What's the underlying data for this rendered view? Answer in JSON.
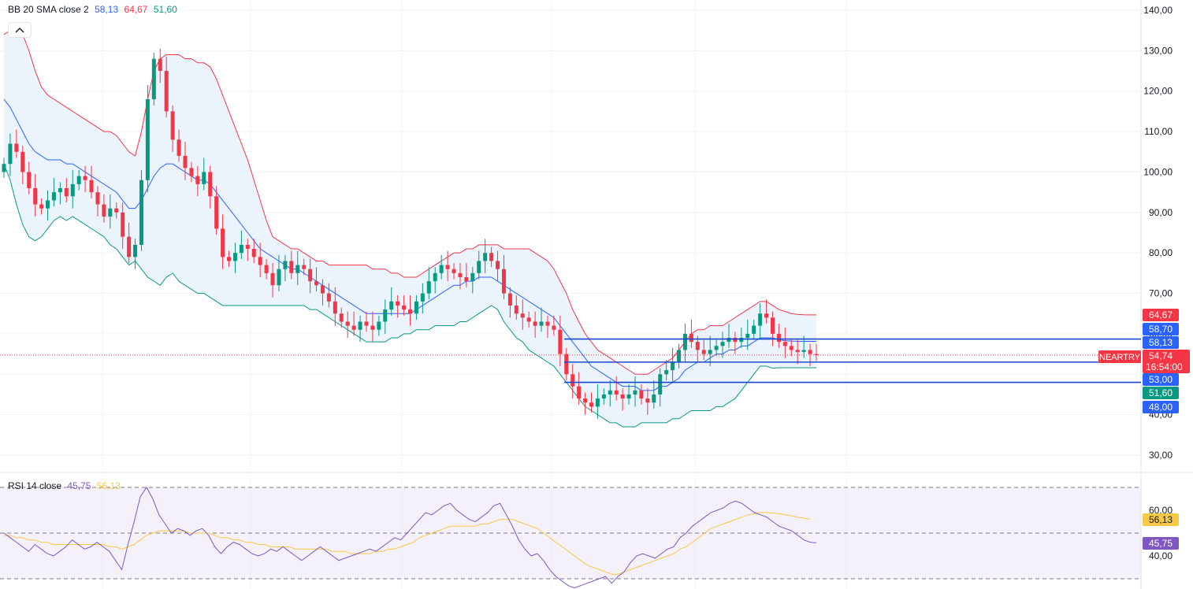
{
  "legend_bb": {
    "title": "BB 20 SMA close 2",
    "basis": "58,13",
    "upper": "64,67",
    "lower": "51,60"
  },
  "legend_rsi": {
    "title": "RSI 14 close",
    "rsi": "45,75",
    "ma": "56,13"
  },
  "colors": {
    "up": "#089981",
    "down": "#f23645",
    "basis": "#2962ff",
    "upper": "#f23645",
    "lower": "#089981",
    "rsi": "#7e57c2",
    "rsi_ma": "#f7c948",
    "hline": "#1848cc",
    "band_fill": "#ebf3fd",
    "rsi_band_fill": "#ede7f6"
  },
  "icons": {
    "collapse": "chevron-up-icon"
  },
  "chart_data": [
    {
      "type": "candlestick",
      "symbol": "NEARTRY",
      "ylim": [
        28,
        140
      ],
      "yticks": [
        "30,00",
        "40,00",
        "50,00",
        "60,00",
        "70,00",
        "80,00",
        "90,00",
        "100,00",
        "110,00",
        "120,00",
        "130,00",
        "140,00"
      ],
      "ytick_values": [
        30,
        40,
        50,
        60,
        70,
        80,
        90,
        100,
        110,
        120,
        130,
        140
      ],
      "last_price": "54,74",
      "countdown": "16:54:00",
      "price_tags": [
        {
          "label": "64,67",
          "value": 64.67,
          "color": "#f23645"
        },
        {
          "label": "58,70",
          "value": 58.7,
          "color": "#2962ff"
        },
        {
          "label": "58,13",
          "value": 58.13,
          "color": "#2962ff"
        },
        {
          "label": "53,00",
          "value": 53.0,
          "color": "#2962ff"
        },
        {
          "label": "51,60",
          "value": 51.6,
          "color": "#089981"
        },
        {
          "label": "48,00",
          "value": 48.0,
          "color": "#2962ff"
        }
      ],
      "horizontal_levels": [
        58.7,
        53.0,
        48.0
      ],
      "close_series": [
        102,
        107,
        105,
        100,
        96,
        92,
        91,
        93,
        95,
        96,
        94,
        97,
        99,
        98,
        95,
        92,
        89,
        91,
        90,
        84,
        79,
        82,
        98,
        118,
        128,
        125,
        115,
        108,
        104,
        101,
        99,
        97,
        100,
        94,
        86,
        79,
        78,
        80,
        82,
        81,
        79,
        77,
        75,
        72,
        76,
        78,
        75,
        77,
        76,
        73,
        72,
        70,
        68,
        65,
        63,
        62,
        61,
        63,
        62,
        61,
        63,
        66,
        68,
        67,
        66,
        65,
        68,
        70,
        73,
        75,
        77,
        76,
        75,
        74,
        73,
        75,
        78,
        80,
        78,
        76,
        70,
        67,
        65,
        64,
        63,
        62,
        63,
        62,
        61,
        55,
        50,
        47,
        44,
        43,
        42,
        44,
        45,
        46,
        45,
        44,
        45,
        46,
        44,
        43,
        45,
        50,
        51,
        53,
        56,
        60,
        58,
        56,
        55,
        56,
        57,
        58,
        59,
        58,
        59,
        60,
        62,
        65,
        64,
        60,
        58,
        57,
        56,
        55.5,
        56,
        55,
        54.74
      ],
      "basis_series": [
        118,
        116,
        113,
        110,
        107,
        105,
        104,
        103,
        103,
        103,
        102,
        102,
        101,
        100,
        99,
        98,
        97,
        96,
        95,
        93,
        91,
        91,
        93,
        96,
        99,
        101,
        102,
        102,
        101,
        100,
        99,
        98,
        98,
        97,
        95,
        93,
        91,
        89,
        87,
        85,
        83,
        81,
        80,
        79,
        78,
        77,
        76,
        76,
        75,
        74,
        73,
        72,
        71,
        70,
        69,
        68,
        67,
        66,
        65,
        65,
        65,
        65,
        65,
        65,
        65,
        65,
        66,
        67,
        68,
        69,
        70,
        71,
        72,
        72,
        73,
        73,
        74,
        74,
        74,
        73,
        72,
        71,
        70,
        69,
        68,
        67,
        66,
        65,
        64,
        62,
        60,
        58,
        56,
        54,
        52,
        51,
        50,
        49,
        48,
        47,
        47,
        47,
        46,
        46,
        46,
        47,
        47,
        48,
        49,
        51,
        52,
        53,
        53,
        54,
        55,
        55,
        56,
        56,
        57,
        57,
        58,
        59,
        59,
        59,
        58.5,
        58.3,
        58.2,
        58.13,
        58.13,
        58.13,
        58.13
      ],
      "upper_series": [
        134,
        135,
        136,
        134,
        130,
        125,
        121,
        119,
        118,
        117,
        116,
        115,
        114,
        113,
        112,
        111,
        110,
        110,
        109,
        107,
        105,
        104,
        110,
        118,
        125,
        128,
        129,
        129,
        129,
        128,
        128,
        127,
        127,
        126,
        123,
        119,
        115,
        111,
        107,
        103,
        98,
        93,
        88,
        84,
        83,
        82,
        81,
        81,
        80,
        79,
        78,
        78,
        77,
        77,
        77,
        77,
        77,
        77,
        77,
        76,
        76,
        76,
        75,
        75,
        74,
        74,
        74,
        75,
        76,
        77,
        78,
        79,
        80,
        80,
        81,
        81,
        82,
        82,
        82,
        82,
        81,
        81,
        81,
        81,
        81,
        80,
        79,
        78,
        76,
        73,
        70,
        66,
        63,
        60,
        58,
        56,
        55,
        54,
        53,
        52,
        51,
        50,
        50,
        50,
        51,
        52,
        53,
        54,
        56,
        58,
        60,
        61,
        61,
        62,
        62,
        62,
        63,
        64,
        65,
        66,
        67,
        68,
        68,
        67,
        66,
        65.5,
        65,
        64.8,
        64.7,
        64.67,
        64.67
      ],
      "lower_series": [
        102,
        98,
        92,
        87,
        84,
        83,
        84,
        86,
        88,
        89,
        88,
        89,
        88,
        87,
        86,
        85,
        84,
        82,
        81,
        79,
        77,
        78,
        76,
        74,
        73,
        72,
        74,
        75,
        73,
        72,
        71,
        70,
        70,
        69,
        68,
        67,
        67,
        67,
        67,
        67,
        67,
        67,
        67,
        67,
        67,
        67,
        67,
        67,
        67,
        66,
        66,
        65,
        64,
        63,
        62,
        61,
        60,
        59,
        58,
        58,
        58,
        58,
        59,
        59,
        60,
        60,
        61,
        61,
        61,
        62,
        62,
        62,
        62,
        63,
        63,
        64,
        65,
        66,
        67,
        66,
        63,
        61,
        59,
        58,
        56,
        55,
        54,
        53,
        52,
        50,
        48,
        46,
        44,
        42,
        41,
        40,
        39,
        38,
        38,
        37,
        37,
        37,
        38,
        38,
        38,
        38,
        38,
        39,
        39,
        40,
        41,
        41,
        41,
        41,
        42,
        42,
        43,
        44,
        46,
        48,
        50,
        52,
        52,
        51.5,
        51.6,
        51.6,
        51.6,
        51.6,
        51.6,
        51.6,
        51.6
      ]
    },
    {
      "type": "line",
      "indicator": "RSI 14",
      "ylim": [
        28,
        76
      ],
      "yticks": [
        "40,00",
        "60,00"
      ],
      "ytick_values": [
        40,
        60
      ],
      "band": [
        30,
        70
      ],
      "middle": 50,
      "series": [
        {
          "name": "RSI",
          "last_label": "45,75",
          "values": [
            50,
            48,
            46,
            44,
            42,
            45,
            43,
            41,
            40,
            42,
            44,
            47,
            45,
            43,
            44,
            46,
            44,
            42,
            38,
            34,
            45,
            55,
            66,
            70,
            65,
            58,
            54,
            50,
            52,
            51,
            49,
            51,
            52,
            49,
            44,
            41,
            44,
            46,
            45,
            43,
            41,
            40,
            41,
            43,
            42,
            44,
            42,
            40,
            38,
            40,
            42,
            44,
            42,
            40,
            38,
            39,
            40,
            41,
            42,
            43,
            42,
            44,
            46,
            48,
            47,
            50,
            53,
            56,
            59,
            58,
            60,
            62,
            63,
            60,
            58,
            56,
            55,
            57,
            59,
            62,
            63,
            58,
            53,
            47,
            43,
            40,
            41,
            38,
            34,
            31,
            29,
            27,
            26,
            27,
            28,
            29,
            30,
            31,
            28,
            31,
            33,
            37,
            40,
            41,
            40,
            39,
            41,
            43,
            44,
            48,
            50,
            53,
            55,
            57,
            59,
            60,
            61,
            63,
            64,
            63,
            61,
            59,
            58,
            57,
            55,
            53,
            52,
            51,
            49,
            47,
            46,
            45.75
          ]
        },
        {
          "name": "MA",
          "last_label": "56,13",
          "values": [
            49,
            49,
            48,
            48,
            47,
            47,
            46,
            46,
            45,
            45,
            45,
            45,
            45,
            45,
            45,
            45,
            45,
            44,
            44,
            43,
            44,
            45,
            47,
            49,
            50,
            51,
            51,
            51,
            51,
            51,
            50,
            50,
            50,
            50,
            49,
            48,
            48,
            47,
            47,
            46,
            46,
            45,
            45,
            44,
            44,
            44,
            44,
            43,
            43,
            43,
            43,
            43,
            43,
            42,
            42,
            42,
            41,
            41,
            41,
            41,
            42,
            42,
            43,
            43,
            44,
            45,
            46,
            48,
            49,
            50,
            51,
            52,
            53,
            53,
            53,
            53,
            53,
            54,
            54,
            55,
            56,
            56,
            56,
            55,
            54,
            53,
            52,
            50,
            48,
            46,
            44,
            42,
            40,
            38,
            36,
            35,
            34,
            33,
            32,
            32,
            33,
            34,
            35,
            36,
            37,
            38,
            39,
            40,
            41,
            43,
            44,
            46,
            48,
            50,
            52,
            53,
            54,
            55,
            56,
            57,
            58,
            58.5,
            59,
            59,
            58.8,
            58.5,
            58,
            57.5,
            57,
            56.5,
            56.13
          ]
        }
      ]
    }
  ]
}
